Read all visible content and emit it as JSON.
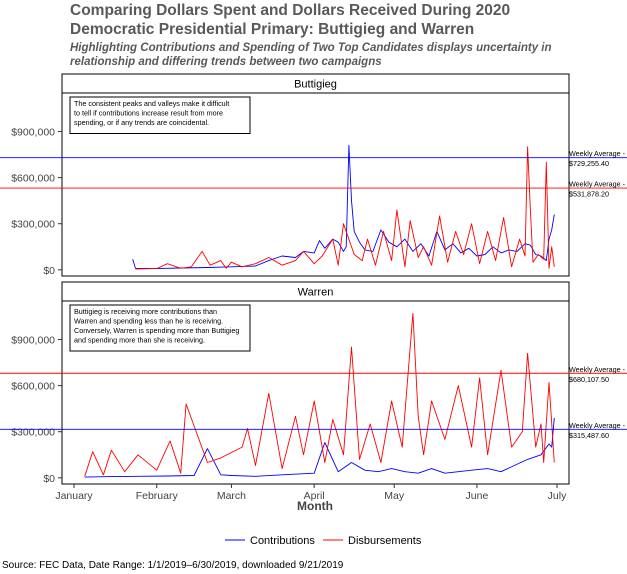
{
  "title_line1": "Comparing Dollars Spent and Dollars Received During 2020",
  "title_line2": "Democratic Presidential Primary: Buttigieg and Warren",
  "subtitle_line1": "Highlighting Contributions and Spending of Two Top Candidates displays uncertainty in",
  "subtitle_line2": "relationship and differing trends  between two campaigns",
  "caption": "Source: FEC Data, Date Range: 1/1/2019–6/30/2019, downloaded 9/21/2019",
  "colors": {
    "contributions": "#0000ff",
    "disbursements": "#ff0000"
  },
  "chart_data": {
    "type": "line",
    "xlabel": "Month",
    "x_ticks": [
      "January",
      "February",
      "March",
      "April",
      "May",
      "June",
      "July"
    ],
    "y_ticks": [
      "$0",
      "$300,000",
      "$600,000",
      "$900,000"
    ],
    "y_tick_values": [
      0,
      300000,
      600000,
      900000
    ],
    "ylim": [
      -40000,
      1150000
    ],
    "legend": {
      "position": "bottom",
      "entries": [
        "Contributions",
        "Disbursements"
      ]
    },
    "panels": [
      {
        "name": "Buttigieg",
        "note": [
          "The consistent peaks and valleys make it difficult",
          "to tell if contributions increase result from more",
          "spending, or if  any trends are coincidental."
        ],
        "averages": [
          {
            "series": "Contributions",
            "value": 729255.4,
            "label_line1": "Weekly Average -",
            "label_line2": "$729,255.40"
          },
          {
            "series": "Disbursements",
            "value": 531878.2,
            "label_line1": "Weekly Average -",
            "label_line2": "$531,878.20"
          }
        ],
        "series": [
          {
            "name": "Contributions",
            "x": [
              "2019-01-23",
              "2019-01-24",
              "2019-02-01",
              "2019-02-10",
              "2019-02-20",
              "2019-03-01",
              "2019-03-10",
              "2019-03-15",
              "2019-03-20",
              "2019-03-25",
              "2019-03-28",
              "2019-04-01",
              "2019-04-03",
              "2019-04-05",
              "2019-04-08",
              "2019-04-10",
              "2019-04-12",
              "2019-04-13",
              "2019-04-14",
              "2019-04-15",
              "2019-04-16",
              "2019-04-18",
              "2019-04-20",
              "2019-04-23",
              "2019-04-26",
              "2019-04-29",
              "2019-05-02",
              "2019-05-05",
              "2019-05-08",
              "2019-05-11",
              "2019-05-14",
              "2019-05-17",
              "2019-05-20",
              "2019-05-23",
              "2019-05-26",
              "2019-05-29",
              "2019-06-01",
              "2019-06-04",
              "2019-06-07",
              "2019-06-10",
              "2019-06-13",
              "2019-06-16",
              "2019-06-19",
              "2019-06-21",
              "2019-06-23",
              "2019-06-25",
              "2019-06-27",
              "2019-06-28",
              "2019-06-29",
              "2019-06-30"
            ],
            "y": [
              70000,
              10000,
              8000,
              12000,
              15000,
              20000,
              25000,
              60000,
              90000,
              80000,
              120000,
              110000,
              190000,
              140000,
              200000,
              180000,
              120000,
              150000,
              810000,
              450000,
              250000,
              180000,
              130000,
              120000,
              260000,
              180000,
              150000,
              200000,
              120000,
              170000,
              90000,
              250000,
              130000,
              170000,
              110000,
              140000,
              90000,
              100000,
              150000,
              110000,
              130000,
              120000,
              170000,
              160000,
              100000,
              90000,
              60000,
              200000,
              260000,
              360000
            ]
          },
          {
            "name": "Disbursements",
            "x": [
              "2019-01-24",
              "2019-02-01",
              "2019-02-05",
              "2019-02-10",
              "2019-02-14",
              "2019-02-18",
              "2019-02-21",
              "2019-02-25",
              "2019-02-27",
              "2019-03-01",
              "2019-03-05",
              "2019-03-10",
              "2019-03-15",
              "2019-03-20",
              "2019-03-25",
              "2019-03-28",
              "2019-04-01",
              "2019-04-04",
              "2019-04-08",
              "2019-04-10",
              "2019-04-12",
              "2019-04-16",
              "2019-04-19",
              "2019-04-21",
              "2019-04-24",
              "2019-04-27",
              "2019-04-30",
              "2019-05-02",
              "2019-05-05",
              "2019-05-07",
              "2019-05-10",
              "2019-05-12",
              "2019-05-15",
              "2019-05-18",
              "2019-05-21",
              "2019-05-24",
              "2019-05-27",
              "2019-05-30",
              "2019-06-02",
              "2019-06-05",
              "2019-06-08",
              "2019-06-11",
              "2019-06-14",
              "2019-06-17",
              "2019-06-19",
              "2019-06-20",
              "2019-06-21",
              "2019-06-22",
              "2019-06-24",
              "2019-06-26",
              "2019-06-27",
              "2019-06-28",
              "2019-06-29",
              "2019-06-30"
            ],
            "y": [
              5000,
              8000,
              40000,
              10000,
              20000,
              120000,
              30000,
              60000,
              10000,
              50000,
              20000,
              40000,
              80000,
              30000,
              60000,
              120000,
              40000,
              90000,
              200000,
              30000,
              300000,
              100000,
              60000,
              200000,
              30000,
              250000,
              60000,
              390000,
              20000,
              320000,
              80000,
              150000,
              30000,
              350000,
              50000,
              250000,
              100000,
              300000,
              40000,
              250000,
              60000,
              340000,
              20000,
              200000,
              90000,
              800000,
              400000,
              50000,
              100000,
              70000,
              700000,
              10000,
              150000,
              20000
            ]
          }
        ]
      },
      {
        "name": "Warren",
        "note": [
          "Buttigieg is receiving more contributions than",
          "Warren and spending less than he is receiving.",
          "Conversely, Warren is spending more than Buttigieg",
          "and spending more than she is receiving."
        ],
        "averages": [
          {
            "series": "Disbursements",
            "value": 680107.5,
            "label_line1": "Weekly Average -",
            "label_line2": "$680,107.50"
          },
          {
            "series": "Contributions",
            "value": 315487.6,
            "label_line1": "Weekly Average -",
            "label_line2": "$315,487.60"
          }
        ],
        "series": [
          {
            "name": "Contributions",
            "x": [
              "2019-01-05",
              "2019-01-15",
              "2019-01-25",
              "2019-02-05",
              "2019-02-15",
              "2019-02-20",
              "2019-02-25",
              "2019-03-01",
              "2019-03-10",
              "2019-03-20",
              "2019-04-01",
              "2019-04-05",
              "2019-04-10",
              "2019-04-15",
              "2019-04-20",
              "2019-04-25",
              "2019-04-30",
              "2019-05-05",
              "2019-05-10",
              "2019-05-15",
              "2019-05-20",
              "2019-05-25",
              "2019-05-30",
              "2019-06-05",
              "2019-06-10",
              "2019-06-15",
              "2019-06-20",
              "2019-06-25",
              "2019-06-28",
              "2019-06-29",
              "2019-06-30"
            ],
            "y": [
              5000,
              8000,
              10000,
              12000,
              15000,
              190000,
              20000,
              15000,
              10000,
              20000,
              30000,
              230000,
              40000,
              100000,
              50000,
              40000,
              60000,
              40000,
              30000,
              60000,
              30000,
              40000,
              50000,
              60000,
              40000,
              80000,
              120000,
              150000,
              220000,
              200000,
              390000
            ]
          },
          {
            "name": "Disbursements",
            "x": [
              "2019-01-05",
              "2019-01-08",
              "2019-01-12",
              "2019-01-15",
              "2019-01-20",
              "2019-01-25",
              "2019-02-01",
              "2019-02-06",
              "2019-02-10",
              "2019-02-12",
              "2019-02-20",
              "2019-02-25",
              "2019-03-05",
              "2019-03-07",
              "2019-03-10",
              "2019-03-15",
              "2019-03-20",
              "2019-03-25",
              "2019-03-28",
              "2019-04-01",
              "2019-04-05",
              "2019-04-08",
              "2019-04-12",
              "2019-04-15",
              "2019-04-18",
              "2019-04-22",
              "2019-04-26",
              "2019-04-30",
              "2019-05-04",
              "2019-05-08",
              "2019-05-10",
              "2019-05-12",
              "2019-05-15",
              "2019-05-20",
              "2019-05-25",
              "2019-05-30",
              "2019-06-02",
              "2019-06-05",
              "2019-06-10",
              "2019-06-14",
              "2019-06-18",
              "2019-06-20",
              "2019-06-23",
              "2019-06-25",
              "2019-06-26",
              "2019-06-28",
              "2019-06-30"
            ],
            "y": [
              10000,
              170000,
              20000,
              180000,
              40000,
              150000,
              50000,
              240000,
              30000,
              480000,
              100000,
              130000,
              200000,
              320000,
              80000,
              550000,
              60000,
              400000,
              150000,
              500000,
              100000,
              380000,
              150000,
              850000,
              120000,
              350000,
              100000,
              500000,
              200000,
              1070000,
              400000,
              150000,
              500000,
              250000,
              600000,
              200000,
              650000,
              150000,
              700000,
              200000,
              300000,
              810000,
              200000,
              350000,
              100000,
              620000,
              100000
            ]
          }
        ]
      }
    ]
  }
}
